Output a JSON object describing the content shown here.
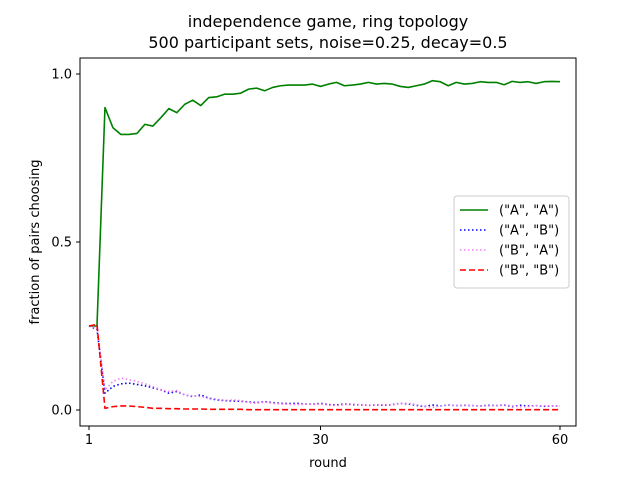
{
  "chart_data": {
    "type": "line",
    "title": "independence game, ring topology",
    "subtitle": "500 participant sets, noise=0.25, decay=0.5",
    "xlabel": "round",
    "ylabel": "fraction of pairs choosing",
    "xlim": [
      1,
      60
    ],
    "ylim": [
      0.0,
      1.0
    ],
    "xticks": [
      1,
      30,
      60
    ],
    "yticks": [
      0.0,
      0.5,
      1.0
    ],
    "xtick_labels": [
      "1",
      "30",
      "60"
    ],
    "ytick_labels": [
      "0.0",
      "0.5",
      "1.0"
    ],
    "grid": false,
    "legend_position": "center-right",
    "x": [
      1,
      2,
      3,
      4,
      5,
      6,
      7,
      8,
      9,
      10,
      11,
      12,
      13,
      14,
      15,
      16,
      17,
      18,
      19,
      20,
      21,
      22,
      23,
      24,
      25,
      26,
      27,
      28,
      29,
      30,
      31,
      32,
      33,
      34,
      35,
      36,
      37,
      38,
      39,
      40,
      41,
      42,
      43,
      44,
      45,
      46,
      47,
      48,
      49,
      50,
      51,
      52,
      53,
      54,
      55,
      56,
      57,
      58,
      59,
      60
    ],
    "series": [
      {
        "name": "(\"A\", \"A\")",
        "color": "#008000",
        "style": "solid",
        "values": [
          0.25,
          0.25,
          0.9,
          0.84,
          0.82,
          0.82,
          0.823,
          0.85,
          0.845,
          0.87,
          0.897,
          0.885,
          0.91,
          0.922,
          0.906,
          0.93,
          0.932,
          0.94,
          0.94,
          0.943,
          0.955,
          0.958,
          0.95,
          0.96,
          0.965,
          0.967,
          0.967,
          0.967,
          0.97,
          0.963,
          0.97,
          0.975,
          0.965,
          0.967,
          0.97,
          0.975,
          0.97,
          0.972,
          0.97,
          0.963,
          0.96,
          0.965,
          0.97,
          0.98,
          0.977,
          0.965,
          0.975,
          0.97,
          0.972,
          0.977,
          0.975,
          0.975,
          0.968,
          0.978,
          0.975,
          0.977,
          0.972,
          0.977,
          0.978,
          0.977
        ]
      },
      {
        "name": "(\"A\", \"B\")",
        "color": "#0000ff",
        "style": "dotted",
        "values": [
          0.25,
          0.24,
          0.05,
          0.07,
          0.078,
          0.08,
          0.076,
          0.072,
          0.066,
          0.06,
          0.05,
          0.055,
          0.045,
          0.04,
          0.045,
          0.035,
          0.03,
          0.028,
          0.027,
          0.026,
          0.024,
          0.022,
          0.025,
          0.022,
          0.02,
          0.019,
          0.02,
          0.018,
          0.017,
          0.02,
          0.016,
          0.015,
          0.018,
          0.016,
          0.015,
          0.014,
          0.015,
          0.014,
          0.016,
          0.02,
          0.018,
          0.014,
          0.01,
          0.015,
          0.012,
          0.015,
          0.013,
          0.014,
          0.013,
          0.012,
          0.014,
          0.013,
          0.015,
          0.01,
          0.014,
          0.012,
          0.013,
          0.011,
          0.012,
          0.012
        ]
      },
      {
        "name": "(\"B\", \"A\")",
        "color": "#ee82ee",
        "style": "dotted",
        "values": [
          0.25,
          0.245,
          0.06,
          0.085,
          0.095,
          0.09,
          0.085,
          0.078,
          0.07,
          0.06,
          0.055,
          0.058,
          0.045,
          0.042,
          0.04,
          0.035,
          0.032,
          0.028,
          0.03,
          0.028,
          0.022,
          0.02,
          0.024,
          0.02,
          0.018,
          0.017,
          0.016,
          0.018,
          0.016,
          0.018,
          0.015,
          0.013,
          0.016,
          0.018,
          0.015,
          0.014,
          0.015,
          0.016,
          0.015,
          0.02,
          0.02,
          0.016,
          0.012,
          0.008,
          0.012,
          0.016,
          0.012,
          0.015,
          0.013,
          0.012,
          0.012,
          0.013,
          0.016,
          0.012,
          0.01,
          0.01,
          0.013,
          0.013,
          0.012,
          0.012
        ]
      },
      {
        "name": "(\"B\", \"B\")",
        "color": "#ff0000",
        "style": "dashed",
        "values": [
          0.25,
          0.255,
          0.005,
          0.01,
          0.012,
          0.012,
          0.01,
          0.008,
          0.005,
          0.005,
          0.004,
          0.004,
          0.003,
          0.003,
          0.003,
          0.002,
          0.002,
          0.002,
          0.002,
          0.002,
          0.001,
          0.001,
          0.001,
          0.001,
          0.001,
          0.001,
          0.001,
          0.001,
          0.001,
          0.001,
          0.001,
          0.001,
          0.001,
          0.001,
          0.001,
          0.001,
          0.001,
          0.001,
          0.001,
          0.001,
          0.001,
          0.001,
          0.001,
          0.001,
          0.001,
          0.001,
          0.001,
          0.001,
          0.001,
          0.001,
          0.001,
          0.001,
          0.001,
          0.001,
          0.001,
          0.001,
          0.001,
          0.001,
          0.001,
          0.001
        ]
      }
    ]
  }
}
